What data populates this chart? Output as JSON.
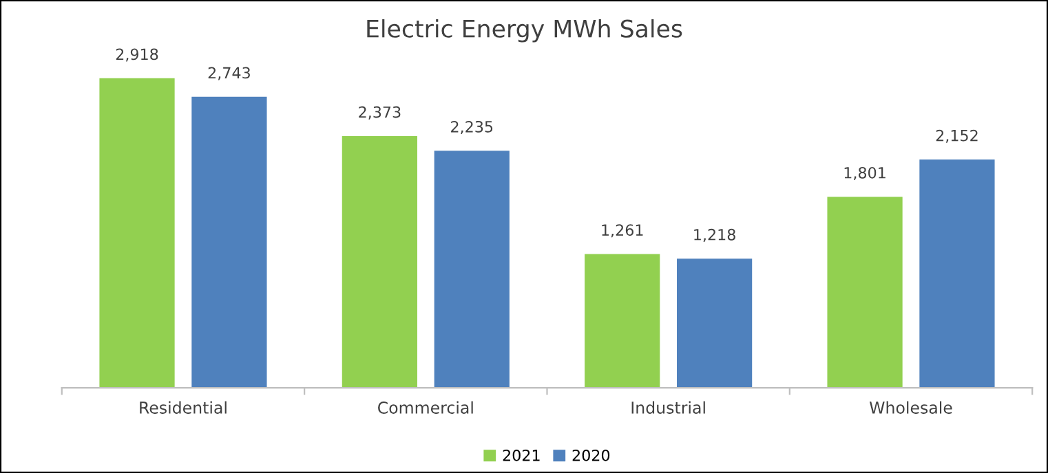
{
  "chart_data": {
    "type": "bar",
    "title": "Electric Energy MWh Sales",
    "categories": [
      "Residential",
      "Commercial",
      "Industrial",
      "Wholesale"
    ],
    "series": [
      {
        "name": "2021",
        "color": "#92d050",
        "values": [
          2918,
          2373,
          1261,
          1801
        ],
        "value_labels": [
          "2,918",
          "2,373",
          "1,261",
          "1,801"
        ]
      },
      {
        "name": "2020",
        "color": "#4f81bd",
        "values": [
          2743,
          2235,
          1218,
          2152
        ],
        "value_labels": [
          "2,743",
          "2,235",
          "1,218",
          "2,152"
        ]
      }
    ],
    "legend": "bottom"
  }
}
